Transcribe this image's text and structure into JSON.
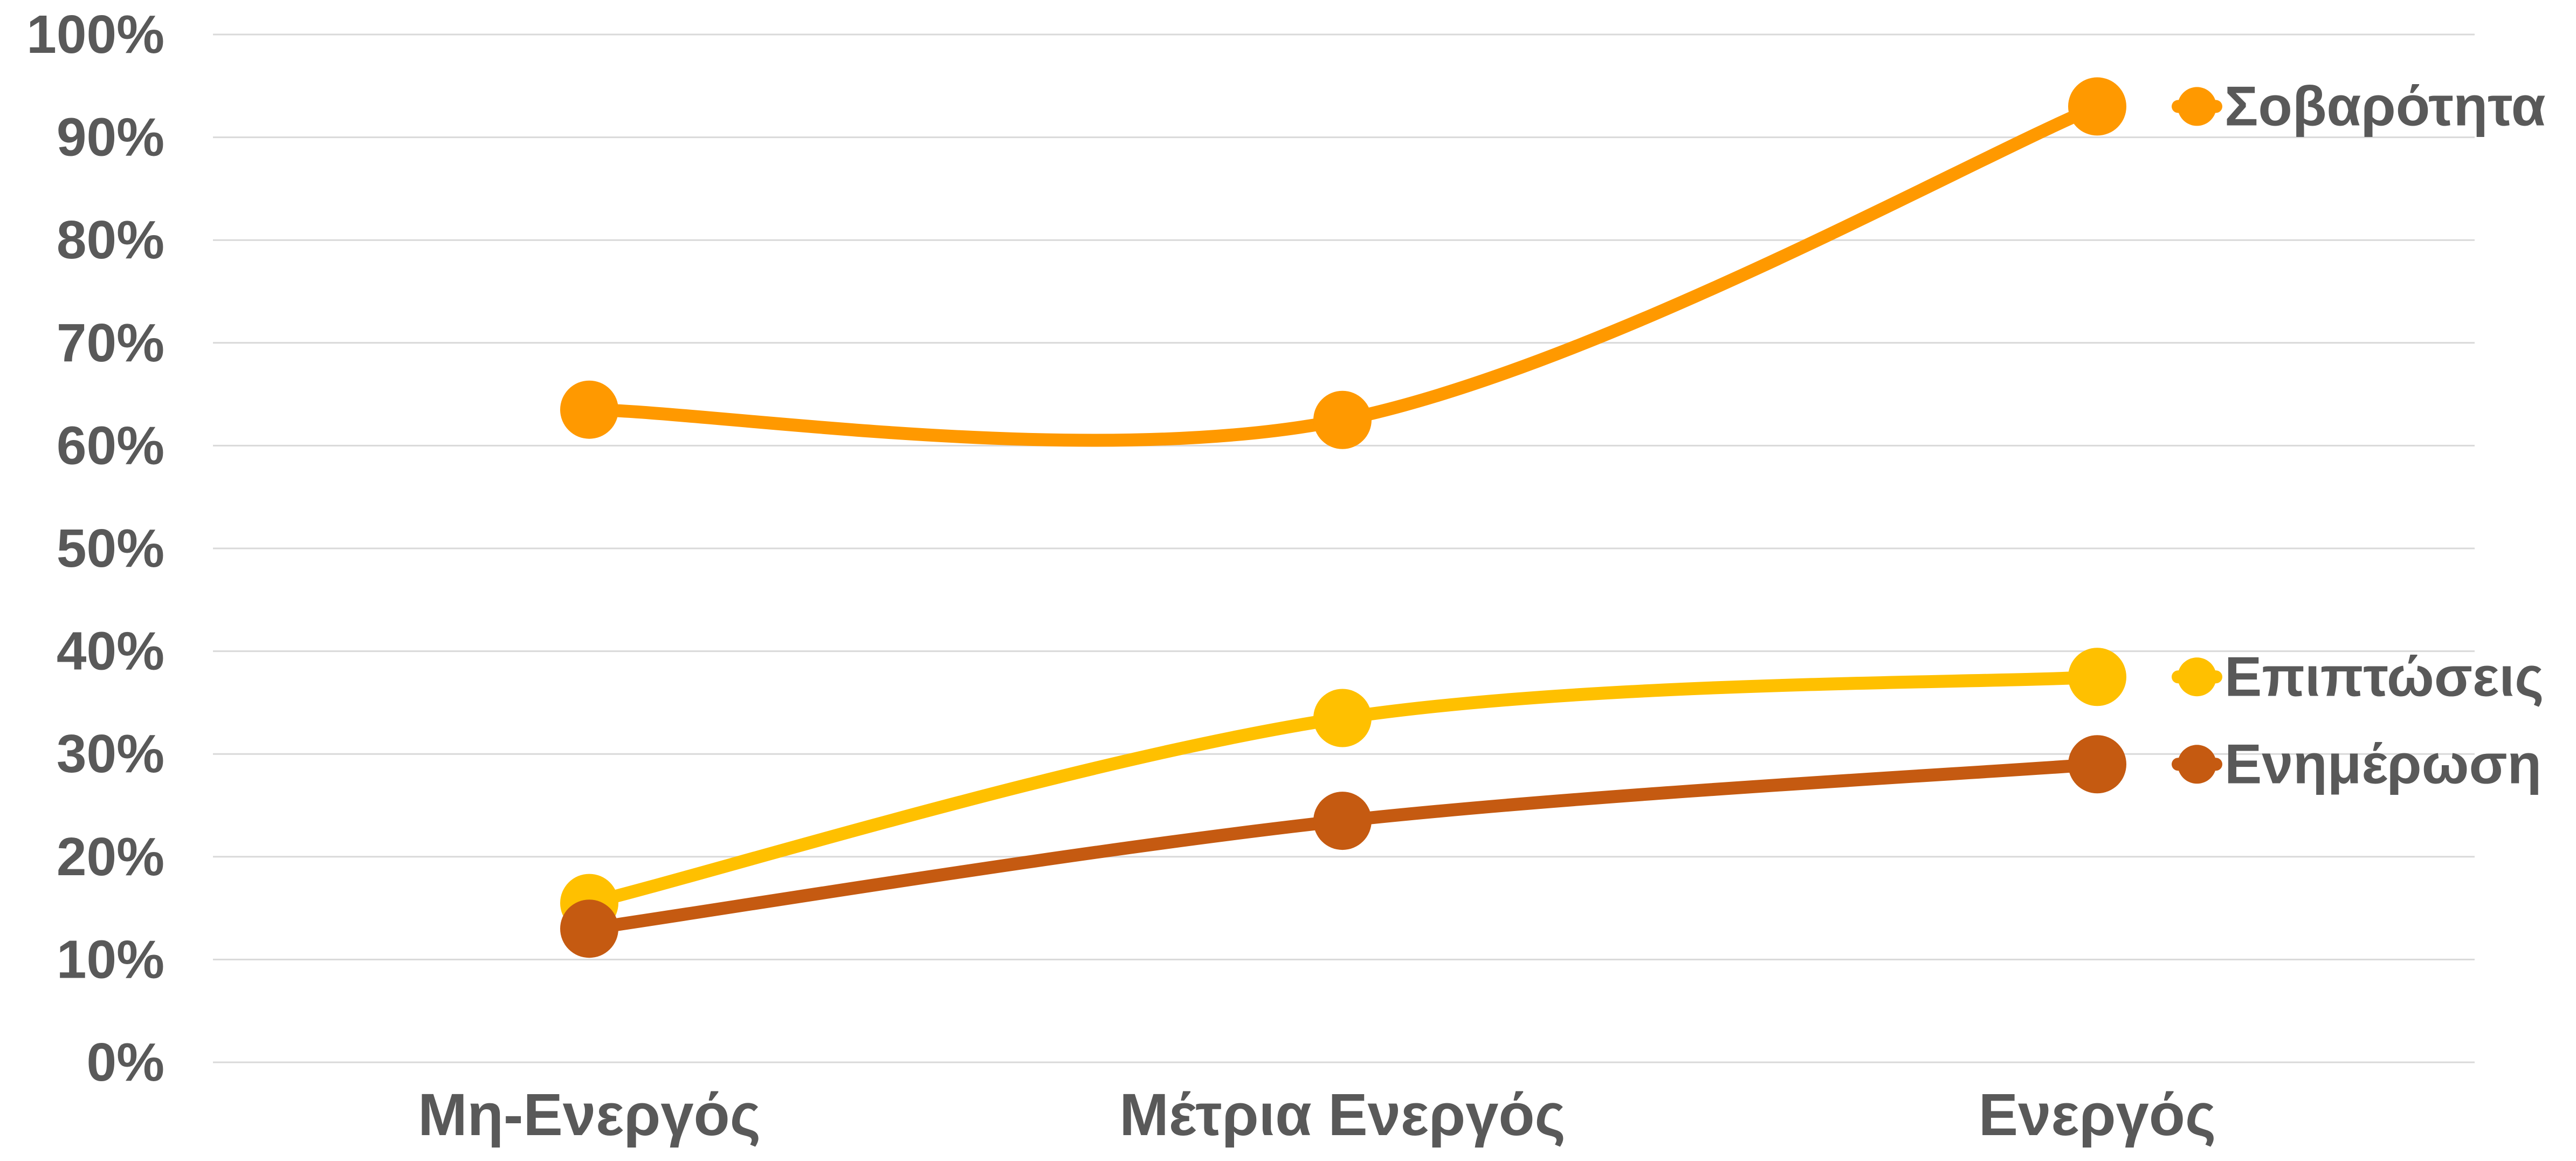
{
  "chart_data": {
    "type": "line",
    "title": "",
    "xlabel": "",
    "ylabel": "",
    "categories": [
      "Μη-Ενεργός",
      "Μέτρια Ενεργός",
      "Ενεργός"
    ],
    "y_ticks": [
      "0%",
      "10%",
      "20%",
      "30%",
      "40%",
      "50%",
      "60%",
      "70%",
      "80%",
      "90%",
      "100%"
    ],
    "ylim": [
      0,
      100
    ],
    "y_unit": "%",
    "grid": true,
    "smooth": true,
    "legend": "right, labels at line ends",
    "series": [
      {
        "name": "Σοβαρότητα",
        "color": "#FF9900",
        "values": [
          63.5,
          62.5,
          93
        ]
      },
      {
        "name": "Επιπτώσεις",
        "color": "#FFC000",
        "values": [
          15.5,
          33.5,
          37.5
        ]
      },
      {
        "name": "Ενημέρωση",
        "color": "#C55A11",
        "values": [
          13,
          23.5,
          29
        ]
      }
    ]
  }
}
